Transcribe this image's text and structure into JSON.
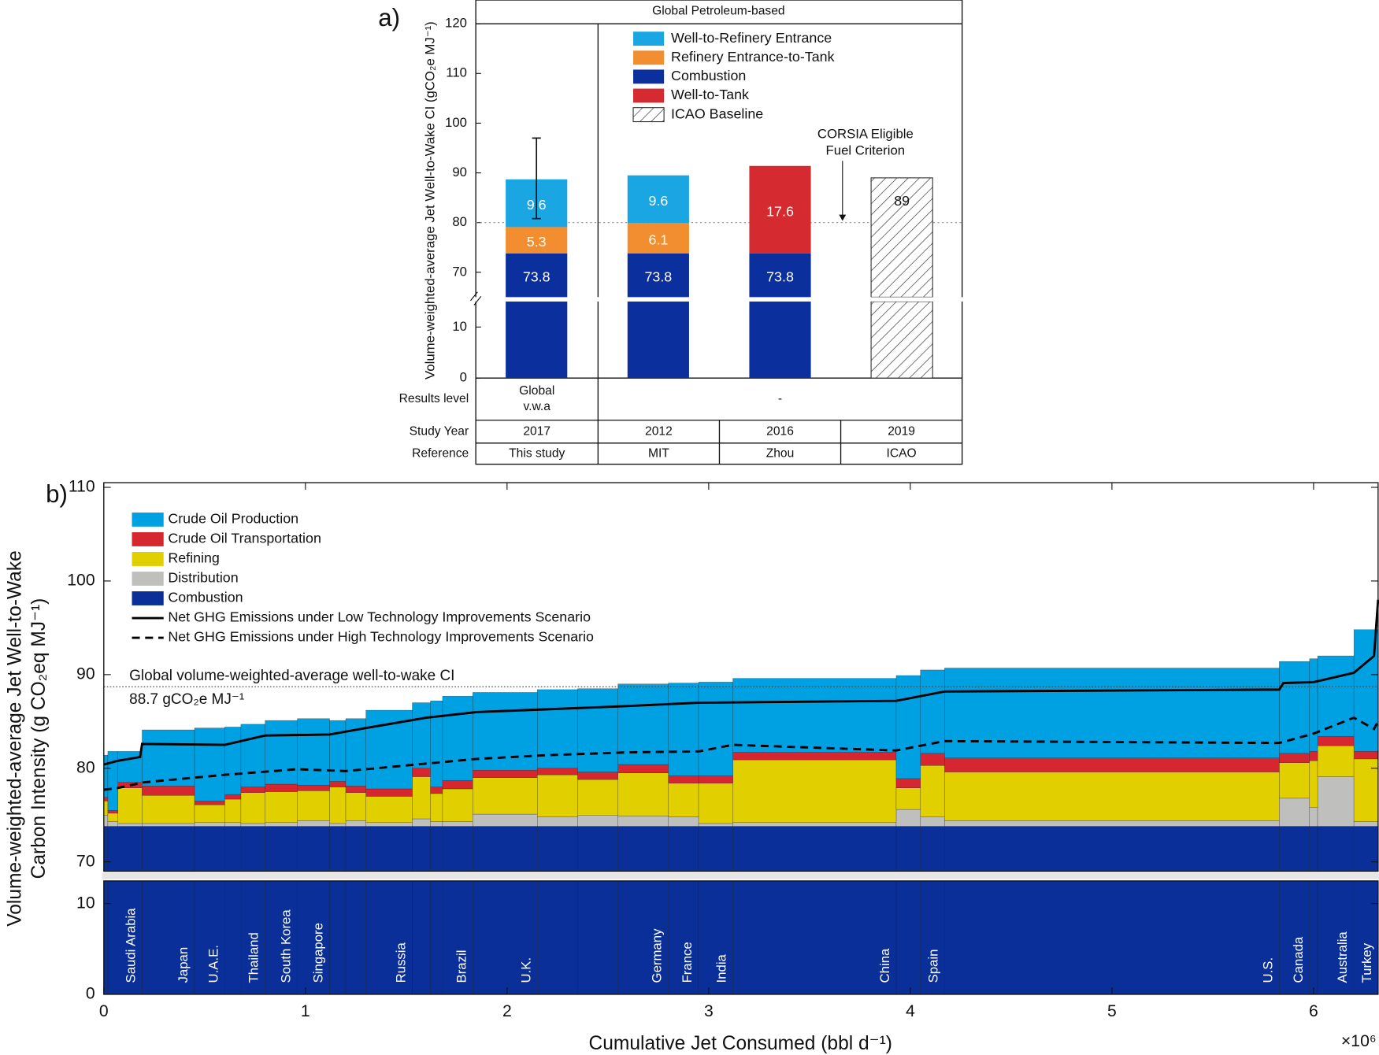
{
  "chart_data": [
    {
      "type": "bar",
      "panel_label": "a)",
      "header": "Global Petroleum-based",
      "y_label": "Volume-weighted-average Jet Well-to-Wake CI (gCO₂e MJ⁻¹)",
      "ylim": [
        0,
        120
      ],
      "ybreak": [
        15,
        65
      ],
      "yticks": [
        0,
        10,
        70,
        80,
        90,
        100,
        110,
        120
      ],
      "series": [
        {
          "name": "Well-to-Refinery Entrance",
          "color": "#1aa6e2",
          "values": [
            9.6,
            9.6,
            null,
            null
          ]
        },
        {
          "name": "Refinery Entrance-to-Tank",
          "color": "#f28e2f",
          "values": [
            5.3,
            6.1,
            null,
            null
          ]
        },
        {
          "name": "Combustion",
          "color": "#0b2f9c",
          "values": [
            73.8,
            73.8,
            73.8,
            null
          ]
        },
        {
          "name": "Well-to-Tank",
          "color": "#d52a30",
          "values": [
            null,
            null,
            17.6,
            null
          ]
        },
        {
          "name": "ICAO Baseline",
          "color": "#ffffff",
          "pattern": "hatch",
          "values": [
            null,
            null,
            null,
            89
          ]
        }
      ],
      "error_low": [
        80.8,
        null,
        null,
        null
      ],
      "error_high": [
        97,
        null,
        null,
        null
      ],
      "reference_line": 80,
      "annotation": [
        "CORSIA Eligible",
        "Fuel Criterion"
      ],
      "table": {
        "rows": [
          {
            "label": "Results level",
            "cells": [
              [
                "Global",
                "v.w.a"
              ],
              [
                "-"
              ]
            ]
          },
          {
            "label": "Study Year",
            "cells": [
              [
                "2017"
              ],
              [
                "2012"
              ],
              [
                "2016"
              ],
              [
                "2019"
              ]
            ]
          },
          {
            "label": "Reference",
            "cells": [
              [
                "This study"
              ],
              [
                "MIT"
              ],
              [
                "Zhou"
              ],
              [
                "ICAO"
              ]
            ]
          }
        ]
      }
    },
    {
      "type": "bar",
      "panel_label": "b)",
      "y_label": [
        "Volume-weighted-average Jet Well-to-Wake",
        "Carbon Intensity (g CO₂eq MJ⁻¹)"
      ],
      "x_label": "Cumulative Jet Consumed (bbl d⁻¹)",
      "x_exponent": "×10⁶",
      "xlim": [
        0,
        6320000
      ],
      "xticks": [
        0,
        {
          "value": 1000000,
          "label": "1"
        },
        {
          "value": 2000000,
          "label": "2"
        },
        {
          "value": 3000000,
          "label": "3"
        },
        {
          "value": 4000000,
          "label": "4"
        },
        {
          "value": 5000000,
          "label": "5"
        },
        {
          "value": 6000000,
          "label": "6"
        }
      ],
      "ylim": [
        0,
        110.5
      ],
      "ybreak": [
        12.5,
        69
      ],
      "yticks": [
        0,
        10,
        70,
        80,
        90,
        100,
        110
      ],
      "bins": [
        0,
        20000,
        70000,
        190000,
        450000,
        600000,
        680000,
        800000,
        960000,
        1120000,
        1200000,
        1300000,
        1530000,
        1620000,
        1680000,
        1830000,
        2150000,
        2350000,
        2550000,
        2800000,
        2950000,
        3120000,
        3930000,
        4050000,
        4170000,
        5830000,
        5980000,
        6020000,
        6200000,
        6320000
      ],
      "categories": [
        null,
        null,
        "Saudi Arabia",
        "Japan",
        "U.A.E.",
        null,
        "Thailand",
        "South Korea",
        "Singapore",
        null,
        null,
        "Russia",
        null,
        null,
        "Brazil",
        "U.K.",
        null,
        null,
        "Germany",
        "France",
        "India",
        "China",
        null,
        "Spain",
        "U.S.",
        "Canada",
        null,
        "Australia",
        "Turkey"
      ],
      "series": [
        {
          "name": "Crude Oil Production",
          "color": "#00a1e2",
          "values": [
            4.5,
            6.3,
            3.3,
            6.0,
            7.8,
            7.2,
            6.7,
            6.8,
            7.1,
            6.5,
            7.2,
            8.4,
            7.0,
            9.2,
            9.0,
            8.3,
            8.4,
            8.9,
            8.6,
            9.9,
            10.0,
            7.9,
            11.0,
            8.9,
            9.6,
            9.8,
            9.9,
            8.6,
            13.0
          ]
        },
        {
          "name": "Crude Oil Transportation",
          "color": "#d6262f",
          "values": [
            0.4,
            0.3,
            0.6,
            1.0,
            0.4,
            0.5,
            0.6,
            0.8,
            0.6,
            0.6,
            0.7,
            0.8,
            0.9,
            0.7,
            0.9,
            0.8,
            0.7,
            0.8,
            0.9,
            0.8,
            0.8,
            0.8,
            1.0,
            1.3,
            1.5,
            1.0,
            1.0,
            1.0,
            0.8
          ]
        },
        {
          "name": "Refining",
          "color": "#e2cf00",
          "values": [
            1.5,
            0.9,
            3.8,
            3.0,
            1.9,
            2.5,
            3.3,
            3.3,
            3.2,
            3.9,
            3.0,
            2.8,
            4.5,
            3.0,
            3.5,
            3.9,
            4.5,
            3.8,
            4.6,
            3.6,
            4.3,
            6.7,
            2.3,
            5.5,
            5.2,
            3.8,
            5.0,
            3.3,
            6.7
          ]
        },
        {
          "name": "Distribution",
          "color": "#bfbfbd",
          "values": [
            1.2,
            0.5,
            0.3,
            0.3,
            0.4,
            0.4,
            0.3,
            0.4,
            0.6,
            0.3,
            0.6,
            0.4,
            0.8,
            0.5,
            0.5,
            1.3,
            1.0,
            1.2,
            1.1,
            1.0,
            0.3,
            0.4,
            1.8,
            1.0,
            0.6,
            3.0,
            2.0,
            5.3,
            0.5
          ]
        },
        {
          "name": "Combustion",
          "color": "#0a2f98",
          "values": [
            73.8,
            73.8,
            73.8,
            73.8,
            73.8,
            73.8,
            73.8,
            73.8,
            73.8,
            73.8,
            73.8,
            73.8,
            73.8,
            73.8,
            73.8,
            73.8,
            73.8,
            73.8,
            73.8,
            73.8,
            73.8,
            73.8,
            73.8,
            73.8,
            73.8,
            73.8,
            73.8,
            73.8,
            73.8
          ]
        }
      ],
      "lines": [
        {
          "name": "Net GHG Emissions under Low Technology Improvements Scenario",
          "style": "solid",
          "color": "#000000",
          "x": [
            0,
            70000,
            180000,
            190000,
            600000,
            800000,
            1120000,
            1300000,
            1600000,
            1850000,
            2200000,
            2550000,
            2950000,
            3930000,
            4170000,
            5830000,
            5850000,
            6000000,
            6200000,
            6300000,
            6320000
          ],
          "values": [
            80.4,
            80.8,
            81.2,
            82.6,
            82.5,
            83.5,
            83.6,
            84.3,
            85.4,
            86.0,
            86.3,
            86.6,
            87.0,
            87.2,
            88.2,
            88.4,
            89.1,
            89.2,
            90.2,
            92.0,
            98.0
          ]
        },
        {
          "name": "Net GHG Emissions under High Technology Improvements Scenario",
          "style": "dashed",
          "color": "#000000",
          "x": [
            0,
            70000,
            200000,
            600000,
            960000,
            1200000,
            1500000,
            1850000,
            2200000,
            2600000,
            2950000,
            3120000,
            3930000,
            4170000,
            5830000,
            6000000,
            6200000,
            6300000,
            6320000
          ],
          "values": [
            77.7,
            77.9,
            78.5,
            79.3,
            79.9,
            79.7,
            80.3,
            81.0,
            81.4,
            81.7,
            81.8,
            82.5,
            81.9,
            82.9,
            82.7,
            83.7,
            85.4,
            84.2,
            85.0
          ]
        }
      ],
      "reference_line": 88.7,
      "reference_label": [
        "Global volume-weighted-average well-to-wake CI",
        "88.7 gCO₂e MJ⁻¹"
      ]
    }
  ]
}
